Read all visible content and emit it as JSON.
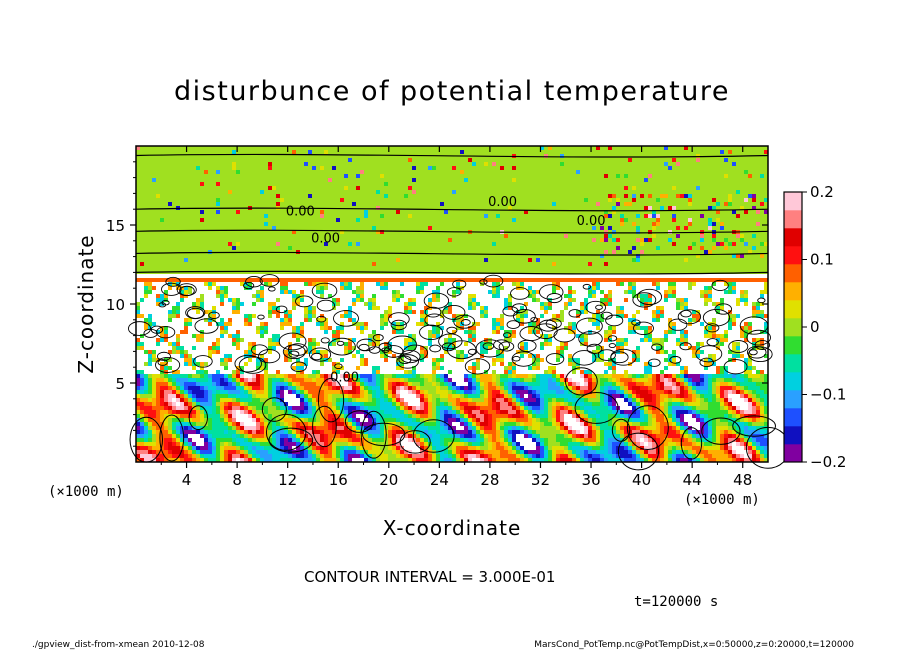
{
  "chart_data": {
    "type": "heatmap",
    "title": "disturbunce of potential temperature",
    "xlabel": "X-coordinate",
    "ylabel": "Z-coordinate",
    "x_unit_left": "(×1000 m)",
    "x_unit_right": "(×1000 m)",
    "xlim": [
      0,
      50
    ],
    "ylim": [
      0,
      20
    ],
    "x_ticks": [
      "4",
      "8",
      "12",
      "16",
      "20",
      "24",
      "28",
      "32",
      "36",
      "40",
      "44",
      "48"
    ],
    "y_ticks": [
      "5",
      "10",
      "15"
    ],
    "colorbar": {
      "range": [
        -0.2,
        0.2
      ],
      "tick_labels": [
        "0.2",
        "0.1",
        "0",
        "−0.1",
        "−0.2"
      ],
      "colors": [
        "#8000a0",
        "#1010c0",
        "#1e50ff",
        "#2aa0ff",
        "#00d0e0",
        "#00e0a0",
        "#30dd30",
        "#a0e020",
        "#e0e000",
        "#ffb000",
        "#ff6000",
        "#ff1010",
        "#e00000",
        "#ff8080",
        "#ffc8d8"
      ]
    },
    "contour_labels": [
      "0.00",
      "0.00",
      "0.00",
      "0.00",
      "0.00"
    ],
    "contour_interval": "CONTOUR INTERVAL = 3.000E-01",
    "time_label": "t=120000  s"
  },
  "footer": {
    "left": "./gpview_dist-from-xmean   2010-12-08",
    "right": "MarsCond_PotTemp.nc@PotTempDist,x=0:50000,z=0:20000,t=120000"
  }
}
